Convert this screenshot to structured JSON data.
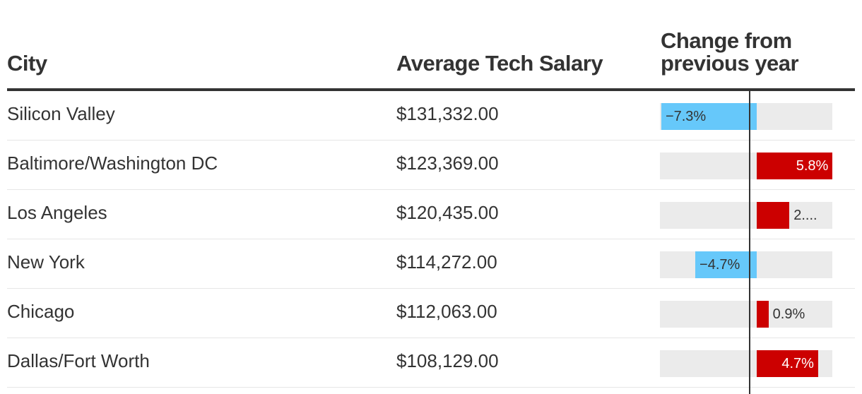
{
  "table": {
    "headers": {
      "city": "City",
      "salary": "Average Tech Salary",
      "change_line1": "Change from",
      "change_line2": "previous year"
    },
    "rows": [
      {
        "city": "Silicon Valley",
        "salary": "$131,332.00",
        "change": -7.3,
        "change_label": "−7.3%"
      },
      {
        "city": "Baltimore/Washington DC",
        "salary": "$123,369.00",
        "change": 5.8,
        "change_label": "5.8%"
      },
      {
        "city": "Los Angeles",
        "salary": "$120,435.00",
        "change": 2.5,
        "change_label": "2...."
      },
      {
        "city": "New York",
        "salary": "$114,272.00",
        "change": -4.7,
        "change_label": "−4.7%"
      },
      {
        "city": "Chicago",
        "salary": "$112,063.00",
        "change": 0.9,
        "change_label": "0.9%"
      },
      {
        "city": "Dallas/Fort Worth",
        "salary": "$108,129.00",
        "change": 4.7,
        "change_label": "4.7%"
      }
    ]
  },
  "chart_data": {
    "type": "table",
    "columns": [
      "City",
      "Average Tech Salary",
      "Change from previous year"
    ],
    "categories": [
      "Silicon Valley",
      "Baltimore/Washington DC",
      "Los Angeles",
      "New York",
      "Chicago",
      "Dallas/Fort Worth"
    ],
    "salaries": [
      131332.0,
      123369.0,
      120435.0,
      114272.0,
      112063.0,
      108129.0
    ],
    "change_pct": [
      -7.3,
      5.8,
      2.5,
      -4.7,
      0.9,
      4.7
    ],
    "change_range": [
      -8,
      6.5
    ],
    "colors": {
      "negative": "#66c8fa",
      "positive": "#cc0000",
      "track": "#ebebeb",
      "text": "#333333"
    }
  }
}
